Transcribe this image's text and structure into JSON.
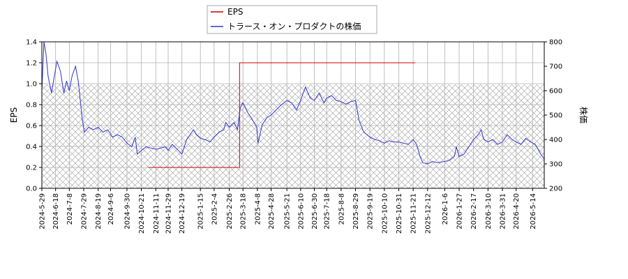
{
  "chart_data": {
    "type": "line",
    "legend": {
      "placement": "top-center",
      "entries": [
        {
          "label": "EPS",
          "color": "#cc0000"
        },
        {
          "label": "トラース・オン・プロダクトの株価",
          "color": "#3333cc"
        }
      ]
    },
    "ylabel_left": "EPS",
    "ylabel_right": "株価",
    "ylim_left": [
      0,
      1.4
    ],
    "yticks_left": [
      "0.0",
      "0.2",
      "0.4",
      "0.6",
      "0.8",
      "1.0",
      "1.2",
      "1.4"
    ],
    "ylim_right": [
      200,
      800
    ],
    "yticks_right": [
      "200",
      "300",
      "400",
      "500",
      "600",
      "700",
      "800"
    ],
    "xlim": [
      "2024-05-29",
      "2026-05-31"
    ],
    "xticks": [
      "2024-5-29",
      "2024-6-18",
      "2024-7-8",
      "2024-7-29",
      "2024-8-19",
      "2024-9-6",
      "2024-9-30",
      "2024-10-21",
      "2024-11-11",
      "2024-11-29",
      "2024-12-19",
      "2025-1-15",
      "2025-2-4",
      "2025-2-26",
      "2025-3-18",
      "2025-4-8",
      "2025-4-28",
      "2025-5-21",
      "2025-6-10",
      "2025-6-30",
      "2025-7-18",
      "2025-8-8",
      "2025-8-29",
      "2025-9-19",
      "2025-10-10",
      "2025-10-31",
      "2025-11-21",
      "2025-12-12",
      "2026-1-6",
      "2026-1-27",
      "2026-2-17",
      "2026-3-10",
      "2026-3-31",
      "2026-4-20",
      "2026-5-14"
    ],
    "grid": true,
    "hatched_region": {
      "axis": "right",
      "y_range": [
        200,
        625
      ]
    },
    "series": [
      {
        "name": "EPS",
        "axis": "left",
        "color": "#cc0000",
        "step": true,
        "points": [
          [
            "2024-10-31",
            0.2
          ],
          [
            "2025-3-13",
            0.2
          ],
          [
            "2025-3-13",
            1.2
          ],
          [
            "2025-11-24",
            1.2
          ]
        ]
      },
      {
        "name": "トラース・オン・プロダクトの株価",
        "axis": "right",
        "color": "#3333cc",
        "points": [
          [
            "2024-5-29",
            600
          ],
          [
            "2024-6-1",
            800
          ],
          [
            "2024-6-4",
            750
          ],
          [
            "2024-6-7",
            660
          ],
          [
            "2024-6-12",
            590
          ],
          [
            "2024-6-15",
            640
          ],
          [
            "2024-6-20",
            720
          ],
          [
            "2024-6-25",
            680
          ],
          [
            "2024-6-30",
            590
          ],
          [
            "2024-7-4",
            640
          ],
          [
            "2024-7-8",
            600
          ],
          [
            "2024-7-12",
            660
          ],
          [
            "2024-7-17",
            700
          ],
          [
            "2024-7-21",
            640
          ],
          [
            "2024-7-24",
            560
          ],
          [
            "2024-7-27",
            480
          ],
          [
            "2024-7-30",
            430
          ],
          [
            "2024-8-5",
            450
          ],
          [
            "2024-8-12",
            440
          ],
          [
            "2024-8-19",
            450
          ],
          [
            "2024-8-26",
            430
          ],
          [
            "2024-9-2",
            440
          ],
          [
            "2024-9-9",
            410
          ],
          [
            "2024-9-16",
            420
          ],
          [
            "2024-9-23",
            410
          ],
          [
            "2024-9-30",
            385
          ],
          [
            "2024-10-7",
            370
          ],
          [
            "2024-10-12",
            410
          ],
          [
            "2024-10-15",
            340
          ],
          [
            "2024-10-21",
            355
          ],
          [
            "2024-10-28",
            370
          ],
          [
            "2024-11-4",
            365
          ],
          [
            "2024-11-11",
            360
          ],
          [
            "2024-11-18",
            365
          ],
          [
            "2024-11-25",
            370
          ],
          [
            "2024-11-29",
            355
          ],
          [
            "2024-12-5",
            380
          ],
          [
            "2024-12-12",
            360
          ],
          [
            "2024-12-19",
            340
          ],
          [
            "2024-12-26",
            400
          ],
          [
            "2025-1-5",
            440
          ],
          [
            "2025-1-9",
            420
          ],
          [
            "2025-1-15",
            405
          ],
          [
            "2025-1-22",
            400
          ],
          [
            "2025-1-29",
            390
          ],
          [
            "2025-2-4",
            410
          ],
          [
            "2025-2-11",
            430
          ],
          [
            "2025-2-18",
            440
          ],
          [
            "2025-2-21",
            470
          ],
          [
            "2025-2-26",
            450
          ],
          [
            "2025-3-5",
            470
          ],
          [
            "2025-3-10",
            440
          ],
          [
            "2025-3-14",
            530
          ],
          [
            "2025-3-18",
            550
          ],
          [
            "2025-3-25",
            510
          ],
          [
            "2025-4-1",
            480
          ],
          [
            "2025-4-7",
            450
          ],
          [
            "2025-4-9",
            385
          ],
          [
            "2025-4-15",
            460
          ],
          [
            "2025-4-22",
            490
          ],
          [
            "2025-4-28",
            500
          ],
          [
            "2025-5-5",
            520
          ],
          [
            "2025-5-12",
            540
          ],
          [
            "2025-5-21",
            560
          ],
          [
            "2025-5-28",
            550
          ],
          [
            "2025-6-4",
            520
          ],
          [
            "2025-6-10",
            560
          ],
          [
            "2025-6-17",
            615
          ],
          [
            "2025-6-24",
            570
          ],
          [
            "2025-6-30",
            560
          ],
          [
            "2025-7-7",
            590
          ],
          [
            "2025-7-14",
            550
          ],
          [
            "2025-7-18",
            570
          ],
          [
            "2025-7-25",
            580
          ],
          [
            "2025-8-1",
            560
          ],
          [
            "2025-8-8",
            555
          ],
          [
            "2025-8-15",
            545
          ],
          [
            "2025-8-22",
            555
          ],
          [
            "2025-8-29",
            560
          ],
          [
            "2025-9-3",
            480
          ],
          [
            "2025-9-10",
            430
          ],
          [
            "2025-9-19",
            410
          ],
          [
            "2025-9-26",
            400
          ],
          [
            "2025-10-3",
            395
          ],
          [
            "2025-10-10",
            385
          ],
          [
            "2025-10-17",
            395
          ],
          [
            "2025-10-24",
            390
          ],
          [
            "2025-10-31",
            390
          ],
          [
            "2025-11-7",
            385
          ],
          [
            "2025-11-14",
            380
          ],
          [
            "2025-11-21",
            400
          ],
          [
            "2025-11-26",
            380
          ],
          [
            "2025-12-1",
            330
          ],
          [
            "2025-12-5",
            305
          ],
          [
            "2025-12-12",
            300
          ],
          [
            "2025-12-19",
            310
          ],
          [
            "2025-12-26",
            305
          ],
          [
            "2026-1-6",
            310
          ],
          [
            "2026-1-13",
            315
          ],
          [
            "2026-1-20",
            330
          ],
          [
            "2026-1-23",
            370
          ],
          [
            "2026-1-27",
            330
          ],
          [
            "2026-2-3",
            340
          ],
          [
            "2026-2-10",
            370
          ],
          [
            "2026-2-17",
            400
          ],
          [
            "2026-2-24",
            420
          ],
          [
            "2026-2-28",
            440
          ],
          [
            "2026-3-4",
            400
          ],
          [
            "2026-3-10",
            390
          ],
          [
            "2026-3-17",
            400
          ],
          [
            "2026-3-24",
            380
          ],
          [
            "2026-3-31",
            390
          ],
          [
            "2026-4-7",
            420
          ],
          [
            "2026-4-14",
            400
          ],
          [
            "2026-4-20",
            390
          ],
          [
            "2026-4-27",
            380
          ],
          [
            "2026-5-4",
            405
          ],
          [
            "2026-5-11",
            390
          ],
          [
            "2026-5-18",
            380
          ],
          [
            "2026-5-22",
            360
          ],
          [
            "2026-5-26",
            340
          ],
          [
            "2026-5-31",
            320
          ]
        ]
      }
    ]
  }
}
